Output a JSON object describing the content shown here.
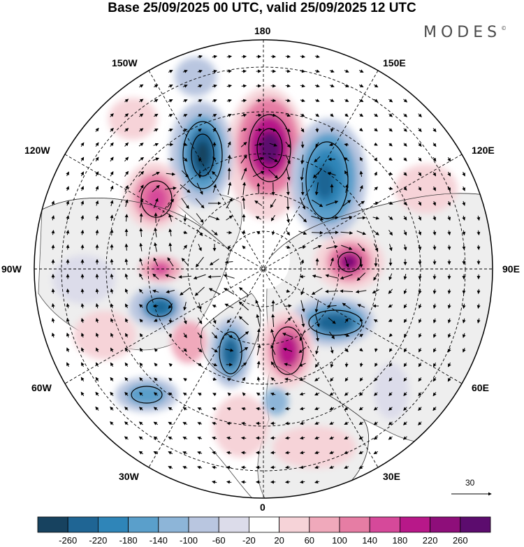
{
  "title": "Base 25/09/2025 00 UTC, valid 25/09/2025 12 UTC",
  "brand": "MODES",
  "brand_mark": "©",
  "longitude_labels": {
    "lon_180": "180",
    "lon_150e": "150E",
    "lon_120e": "120E",
    "lon_90e": "90E",
    "lon_60e": "60E",
    "lon_30e": "30E",
    "lon_0": "0",
    "lon_30w": "30W",
    "lon_60w": "60W",
    "lon_90w": "90W",
    "lon_120w": "120W",
    "lon_150w": "150W"
  },
  "vector_scale": "30",
  "colorbar": {
    "colors": [
      "#17425f",
      "#1f6594",
      "#2f85b8",
      "#5a9fcb",
      "#8db5d8",
      "#b9c6e0",
      "#dcdcea",
      "#ffffff",
      "#f6d3d8",
      "#f0a9bb",
      "#e67da4",
      "#d6499a",
      "#b81889",
      "#8e0e7a",
      "#5c0c6e"
    ],
    "ticks": [
      "-260",
      "-220",
      "-180",
      "-140",
      "-100",
      "-60",
      "-20",
      "20",
      "60",
      "100",
      "140",
      "180",
      "220",
      "260"
    ]
  },
  "anomaly_cells": [
    {
      "sign": "positive",
      "value": 240,
      "lon": 180,
      "lat": 58
    },
    {
      "sign": "negative",
      "value": -230,
      "lon": -146,
      "lat": 53
    },
    {
      "sign": "positive",
      "value": 150,
      "lon": -128,
      "lat": 49
    },
    {
      "sign": "negative",
      "value": -200,
      "lon": 143,
      "lat": 52
    },
    {
      "sign": "positive",
      "value": 200,
      "lon": 92,
      "lat": 60
    },
    {
      "sign": "negative",
      "value": -200,
      "lon": 60,
      "lat": 60
    },
    {
      "sign": "positive",
      "value": 190,
      "lon": 26,
      "lat": 66
    },
    {
      "sign": "negative",
      "value": -160,
      "lon": -19,
      "lat": 66
    },
    {
      "sign": "negative",
      "value": -170,
      "lon": -70,
      "lat": 65
    },
    {
      "sign": "positive",
      "value": 150,
      "lon": -94,
      "lat": 62
    }
  ]
}
